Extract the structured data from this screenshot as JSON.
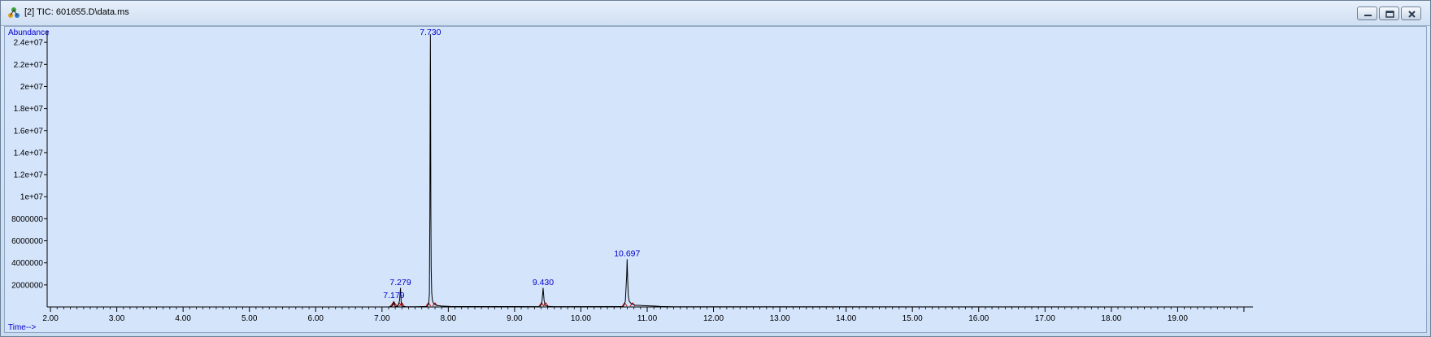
{
  "window": {
    "title": "[2] TIC: 601655.D\\data.ms",
    "controls": [
      "minimize",
      "restore",
      "close"
    ]
  },
  "colors": {
    "plot_background": "#d4e4fb",
    "trace": "#000000",
    "axis_text": "#0000cc",
    "baseline_marks": "#cc0000"
  },
  "chart_data": {
    "type": "line",
    "ylabel": "Abundance",
    "xlabel": "Time-->",
    "xlim": [
      1.95,
      20.05
    ],
    "ylim": [
      0,
      24600000
    ],
    "grid": false,
    "legend": "none",
    "y_ticks": [
      2000000,
      4000000,
      6000000,
      8000000,
      10000000,
      12000000,
      14000000,
      16000000,
      18000000,
      20000000,
      22000000,
      24000000
    ],
    "y_tick_labels": [
      "2000000",
      "4000000",
      "6000000",
      "8000000",
      "1e+07",
      "1.2e+07",
      "1.4e+07",
      "1.6e+07",
      "1.8e+07",
      "2e+07",
      "2.2e+07",
      "2.4e+07"
    ],
    "x_ticks": [
      2,
      3,
      4,
      5,
      6,
      7,
      8,
      9,
      10,
      11,
      12,
      13,
      14,
      15,
      16,
      17,
      18,
      19
    ],
    "x_tick_labels": [
      "2.00",
      "3.00",
      "4.00",
      "5.00",
      "6.00",
      "7.00",
      "8.00",
      "9.00",
      "10.00",
      "11.00",
      "12.00",
      "13.00",
      "14.00",
      "15.00",
      "16.00",
      "17.00",
      "18.00",
      "19.00"
    ],
    "peaks": [
      {
        "label": "7.179",
        "rt": 7.179,
        "abundance": 500000
      },
      {
        "label": "7.279",
        "rt": 7.279,
        "abundance": 1700000
      },
      {
        "label": "7.730",
        "rt": 7.73,
        "abundance": 24700000
      },
      {
        "label": "9.430",
        "rt": 9.43,
        "abundance": 1700000
      },
      {
        "label": "10.697",
        "rt": 10.697,
        "abundance": 4300000
      }
    ],
    "series": [
      {
        "x": [
          1.95,
          7.1,
          7.15,
          7.179,
          7.2,
          7.24,
          7.265,
          7.279,
          7.29,
          7.31,
          7.36,
          7.5,
          7.68,
          7.705,
          7.715,
          7.722,
          7.727,
          7.73,
          7.733,
          7.737,
          7.742,
          7.75,
          7.76,
          7.78,
          7.82,
          7.9,
          8.05,
          9.38,
          9.41,
          9.43,
          9.445,
          9.46,
          9.5,
          9.6,
          10.64,
          10.67,
          10.69,
          10.697,
          10.705,
          10.715,
          10.73,
          10.76,
          10.82,
          10.95,
          11.1,
          11.2,
          11.4,
          20.05
        ],
        "y": [
          0,
          0,
          80000,
          500000,
          60000,
          50000,
          600000,
          1700000,
          400000,
          60000,
          30000,
          20000,
          50000,
          300000,
          1200000,
          8500000,
          19500000,
          24700000,
          19800000,
          9000000,
          3500000,
          1300000,
          600000,
          300000,
          150000,
          80000,
          40000,
          30000,
          300000,
          1700000,
          600000,
          150000,
          60000,
          30000,
          40000,
          500000,
          2800000,
          4300000,
          2600000,
          1000000,
          500000,
          300000,
          160000,
          120000,
          80000,
          50000,
          20000,
          0
        ]
      }
    ],
    "baseline_markers": [
      7.165,
      7.19,
      7.262,
      7.3,
      7.7,
      7.8,
      9.405,
      9.47,
      10.66,
      10.78
    ]
  }
}
